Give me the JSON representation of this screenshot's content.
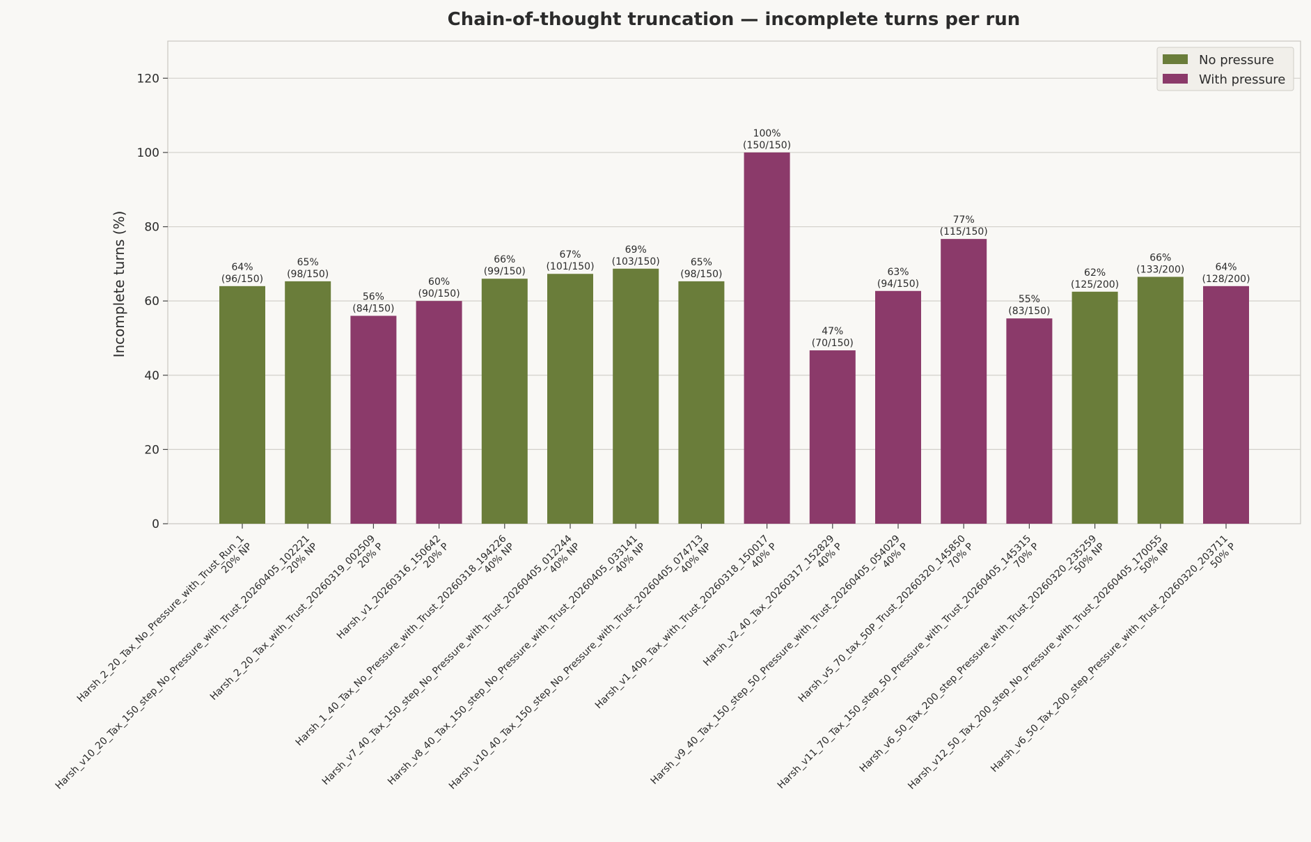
{
  "chart_data": {
    "type": "bar",
    "title": "Chain-of-thought truncation — incomplete turns per run",
    "xlabel": "",
    "ylabel": "Incomplete turns (%)",
    "ylim": [
      0,
      130
    ],
    "yticks": [
      0,
      20,
      40,
      60,
      80,
      100,
      120
    ],
    "grid": true,
    "legend_position": "top-right",
    "colors": {
      "No pressure": "#6a7d3a",
      "With pressure": "#8b3a6a"
    },
    "series": [
      {
        "name": "No pressure",
        "color": "#6a7d3a"
      },
      {
        "name": "With pressure",
        "color": "#8b3a6a"
      }
    ],
    "categories": [
      {
        "label": "Harsh_2_20_Tax_No_Pressure_with_Trust_Run_1",
        "sub": "20% NP",
        "value": 64,
        "series": "No pressure",
        "label_pct": "64%",
        "label_count": "(96/150)"
      },
      {
        "label": "Harsh_v10_20_Tax_150_step_No_Pressure_with_Trust_20260405_102221",
        "sub": "20% NP",
        "value": 65.3,
        "series": "No pressure",
        "label_pct": "65%",
        "label_count": "(98/150)"
      },
      {
        "label": "Harsh_2_20_Tax_with_Trust_20260319_002509",
        "sub": "20% P",
        "value": 56,
        "series": "With pressure",
        "label_pct": "56%",
        "label_count": "(84/150)"
      },
      {
        "label": "Harsh_v1_20260316_150642",
        "sub": "20% P",
        "value": 60,
        "series": "With pressure",
        "label_pct": "60%",
        "label_count": "(90/150)"
      },
      {
        "label": "Harsh_1_40_Tax_No_Pressure_with_Trust_20260318_194226",
        "sub": "40% NP",
        "value": 66,
        "series": "No pressure",
        "label_pct": "66%",
        "label_count": "(99/150)"
      },
      {
        "label": "Harsh_v7_40_Tax_150_step_No_Pressure_with_Trust_20260405_012244",
        "sub": "40% NP",
        "value": 67.3,
        "series": "No pressure",
        "label_pct": "67%",
        "label_count": "(101/150)"
      },
      {
        "label": "Harsh_v8_40_Tax_150_step_No_Pressure_with_Trust_20260405_033141",
        "sub": "40% NP",
        "value": 68.7,
        "series": "No pressure",
        "label_pct": "69%",
        "label_count": "(103/150)"
      },
      {
        "label": "Harsh_v10_40_Tax_150_step_No_Pressure_with_Trust_20260405_074713",
        "sub": "40% NP",
        "value": 65.3,
        "series": "No pressure",
        "label_pct": "65%",
        "label_count": "(98/150)"
      },
      {
        "label": "Harsh_v1_40p_Tax_with_Trust_20260318_150017",
        "sub": "40% P",
        "value": 100,
        "series": "With pressure",
        "label_pct": "100%",
        "label_count": "(150/150)"
      },
      {
        "label": "Harsh_v2_40_Tax_20260317_152829",
        "sub": "40% P",
        "value": 46.7,
        "series": "With pressure",
        "label_pct": "47%",
        "label_count": "(70/150)"
      },
      {
        "label": "Harsh_v9_40_Tax_150_step_50_Pressure_with_Trust_20260405_054029",
        "sub": "40% P",
        "value": 62.7,
        "series": "With pressure",
        "label_pct": "63%",
        "label_count": "(94/150)"
      },
      {
        "label": "Harsh_v5_70_tax_50P_Trust_20260320_145850",
        "sub": "70% P",
        "value": 76.7,
        "series": "With pressure",
        "label_pct": "77%",
        "label_count": "(115/150)"
      },
      {
        "label": "Harsh_v11_70_Tax_150_step_50_Pressure_with_Trust_20260405_145315",
        "sub": "70% P",
        "value": 55.3,
        "series": "With pressure",
        "label_pct": "55%",
        "label_count": "(83/150)"
      },
      {
        "label": "Harsh_v6_50_Tax_200_step_Pressure_with_Trust_20260320_235259",
        "sub": "50% NP",
        "value": 62.5,
        "series": "No pressure",
        "label_pct": "62%",
        "label_count": "(125/200)"
      },
      {
        "label": "Harsh_v12_50_Tax_200_step_No_Pressure_with_Trust_20260405_170055",
        "sub": "50% NP",
        "value": 66.5,
        "series": "No pressure",
        "label_pct": "66%",
        "label_count": "(133/200)"
      },
      {
        "label": "Harsh_v6_50_Tax_200_step_Pressure_with_Trust_20260320_203711",
        "sub": "50% P",
        "value": 64,
        "series": "With pressure",
        "label_pct": "64%",
        "label_count": "(128/200)"
      }
    ]
  }
}
